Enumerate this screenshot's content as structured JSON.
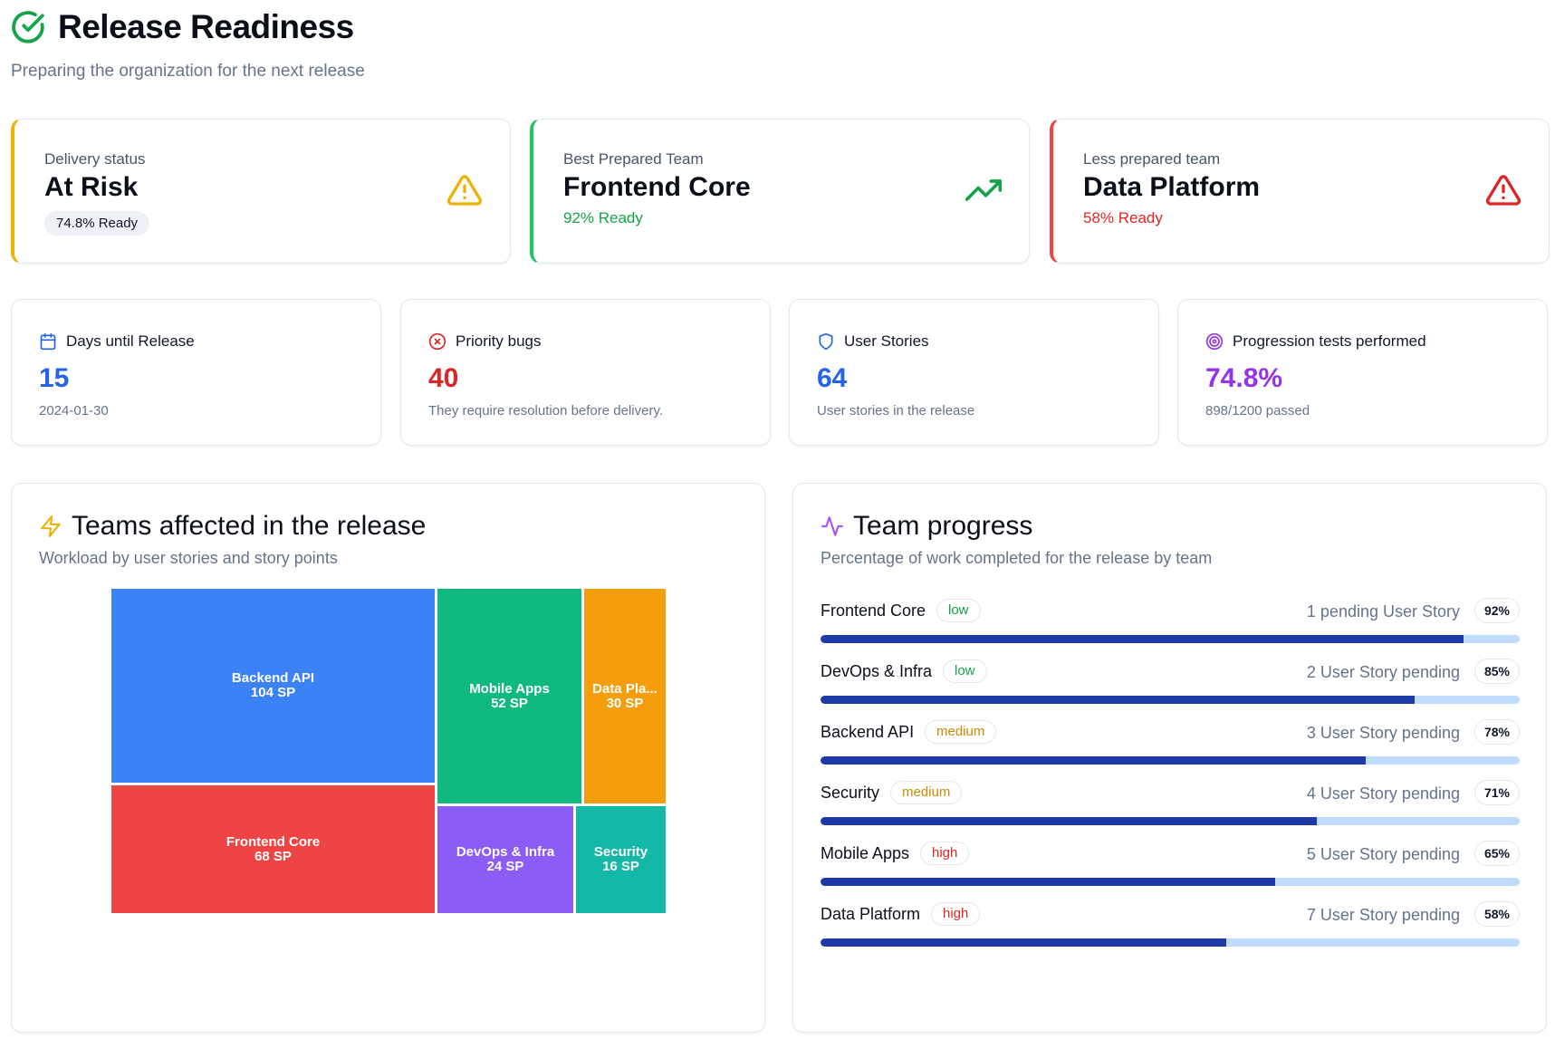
{
  "header": {
    "title": "Release Readiness",
    "subtitle": "Preparing the organization for the next release"
  },
  "status_cards": [
    {
      "label": "Delivery status",
      "value": "At Risk",
      "sub": "74.8% Ready",
      "accent": "#eab308",
      "icon": "warning-triangle-icon"
    },
    {
      "label": "Best Prepared Team",
      "value": "Frontend Core",
      "sub": "92% Ready",
      "accent": "#22c55e",
      "icon": "trending-up-icon"
    },
    {
      "label": "Less prepared team",
      "value": "Data Platform",
      "sub": "58% Ready",
      "accent": "#ef4444",
      "icon": "alert-triangle-icon"
    }
  ],
  "metrics": [
    {
      "label": "Days until Release",
      "value": "15",
      "sub": "2024-01-30",
      "color": "#2563eb",
      "icon": "calendar-icon"
    },
    {
      "label": "Priority bugs",
      "value": "40",
      "sub": "They require resolution before delivery.",
      "color": "#dc2626",
      "icon": "x-circle-icon"
    },
    {
      "label": "User Stories",
      "value": "64",
      "sub": "User stories in the release",
      "color": "#2563eb",
      "icon": "shield-icon"
    },
    {
      "label": "Progression tests performed",
      "value": "74.8%",
      "sub": "898/1200 passed",
      "color": "#9333ea",
      "icon": "target-icon"
    }
  ],
  "teams_panel": {
    "title": "Teams affected in the release",
    "subtitle": "Workload by user stories and story points",
    "icon": "lightning-icon"
  },
  "chart_data": {
    "type": "treemap",
    "title": "Teams affected in the release",
    "unit": "SP",
    "items": [
      {
        "name": "Backend API",
        "label": "104 SP",
        "value": 104,
        "color": "#3b82f6"
      },
      {
        "name": "Frontend Core",
        "label": "68 SP",
        "value": 68,
        "color": "#ef4444"
      },
      {
        "name": "Mobile Apps",
        "label": "52 SP",
        "value": 52,
        "color": "#10b981"
      },
      {
        "name": "DevOps & Infra",
        "label": "24 SP",
        "value": 24,
        "color": "#8b5cf6"
      },
      {
        "name": "Data Pla...",
        "label": "30 SP",
        "value": 30,
        "color": "#f59e0b"
      },
      {
        "name": "Security",
        "label": "16 SP",
        "value": 16,
        "color": "#14b8a6"
      }
    ]
  },
  "progress_panel": {
    "title": "Team progress",
    "subtitle": "Percentage of work completed for the release by team",
    "icon": "activity-icon",
    "rows": [
      {
        "team": "Frontend Core",
        "priority": "low",
        "pending": "1 pending User Story",
        "pct_label": "92%",
        "pct": 92
      },
      {
        "team": "DevOps & Infra",
        "priority": "low",
        "pending": "2 User Story pending",
        "pct_label": "85%",
        "pct": 85
      },
      {
        "team": "Backend API",
        "priority": "medium",
        "pending": "3 User Story pending",
        "pct_label": "78%",
        "pct": 78
      },
      {
        "team": "Security",
        "priority": "medium",
        "pending": "4 User Story pending",
        "pct_label": "71%",
        "pct": 71
      },
      {
        "team": "Mobile Apps",
        "priority": "high",
        "pending": "5 User Story pending",
        "pct_label": "65%",
        "pct": 65
      },
      {
        "team": "Data Platform",
        "priority": "high",
        "pending": "7 User Story pending",
        "pct_label": "58%",
        "pct": 58
      }
    ],
    "priority_colors": {
      "low": "#16a34a",
      "medium": "#ca8a04",
      "high": "#dc2626"
    }
  }
}
